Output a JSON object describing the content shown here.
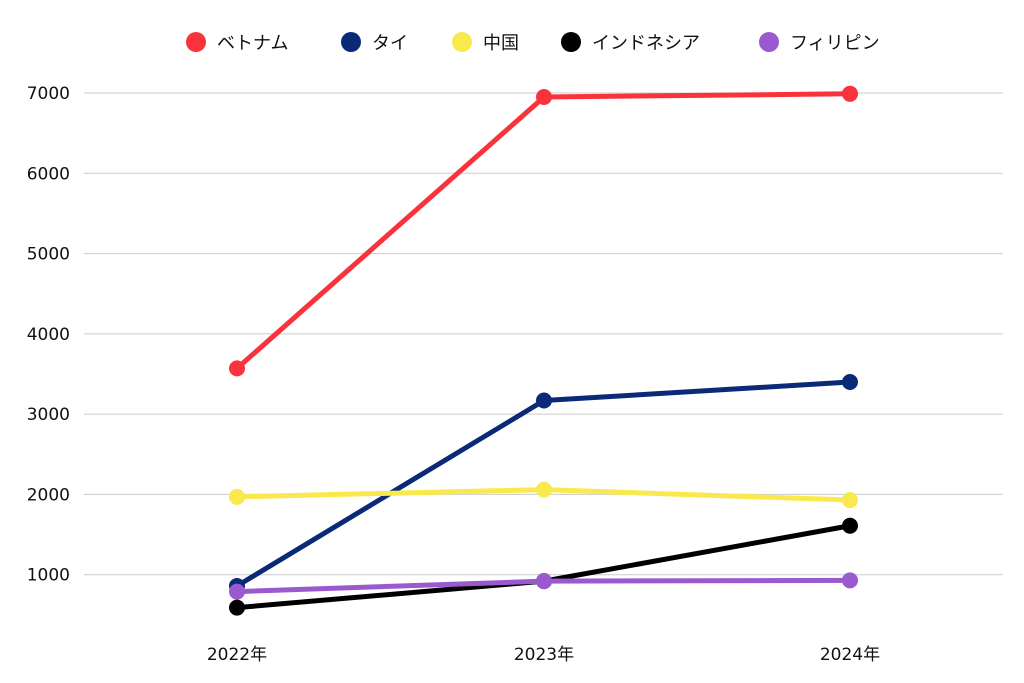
{
  "chart_data": {
    "type": "line",
    "categories": [
      "2022年",
      "2023年",
      "2024年"
    ],
    "ylim": [
      0,
      7000
    ],
    "yticks": [
      1000,
      2000,
      3000,
      4000,
      5000,
      6000,
      7000
    ],
    "grid": true,
    "legend_position": "top",
    "series": [
      {
        "name": "ベトナム",
        "color": "#f8333c",
        "values": [
          3570,
          6950,
          6990
        ]
      },
      {
        "name": "タイ",
        "color": "#0a2a78",
        "values": [
          860,
          3170,
          3400
        ]
      },
      {
        "name": "中国",
        "color": "#f9e94c",
        "values": [
          1970,
          2060,
          1930
        ]
      },
      {
        "name": "インドネシア",
        "color": "#000000",
        "values": [
          590,
          920,
          1610
        ]
      },
      {
        "name": "フィリピン",
        "color": "#9b59d0",
        "values": [
          790,
          920,
          930
        ]
      }
    ]
  }
}
